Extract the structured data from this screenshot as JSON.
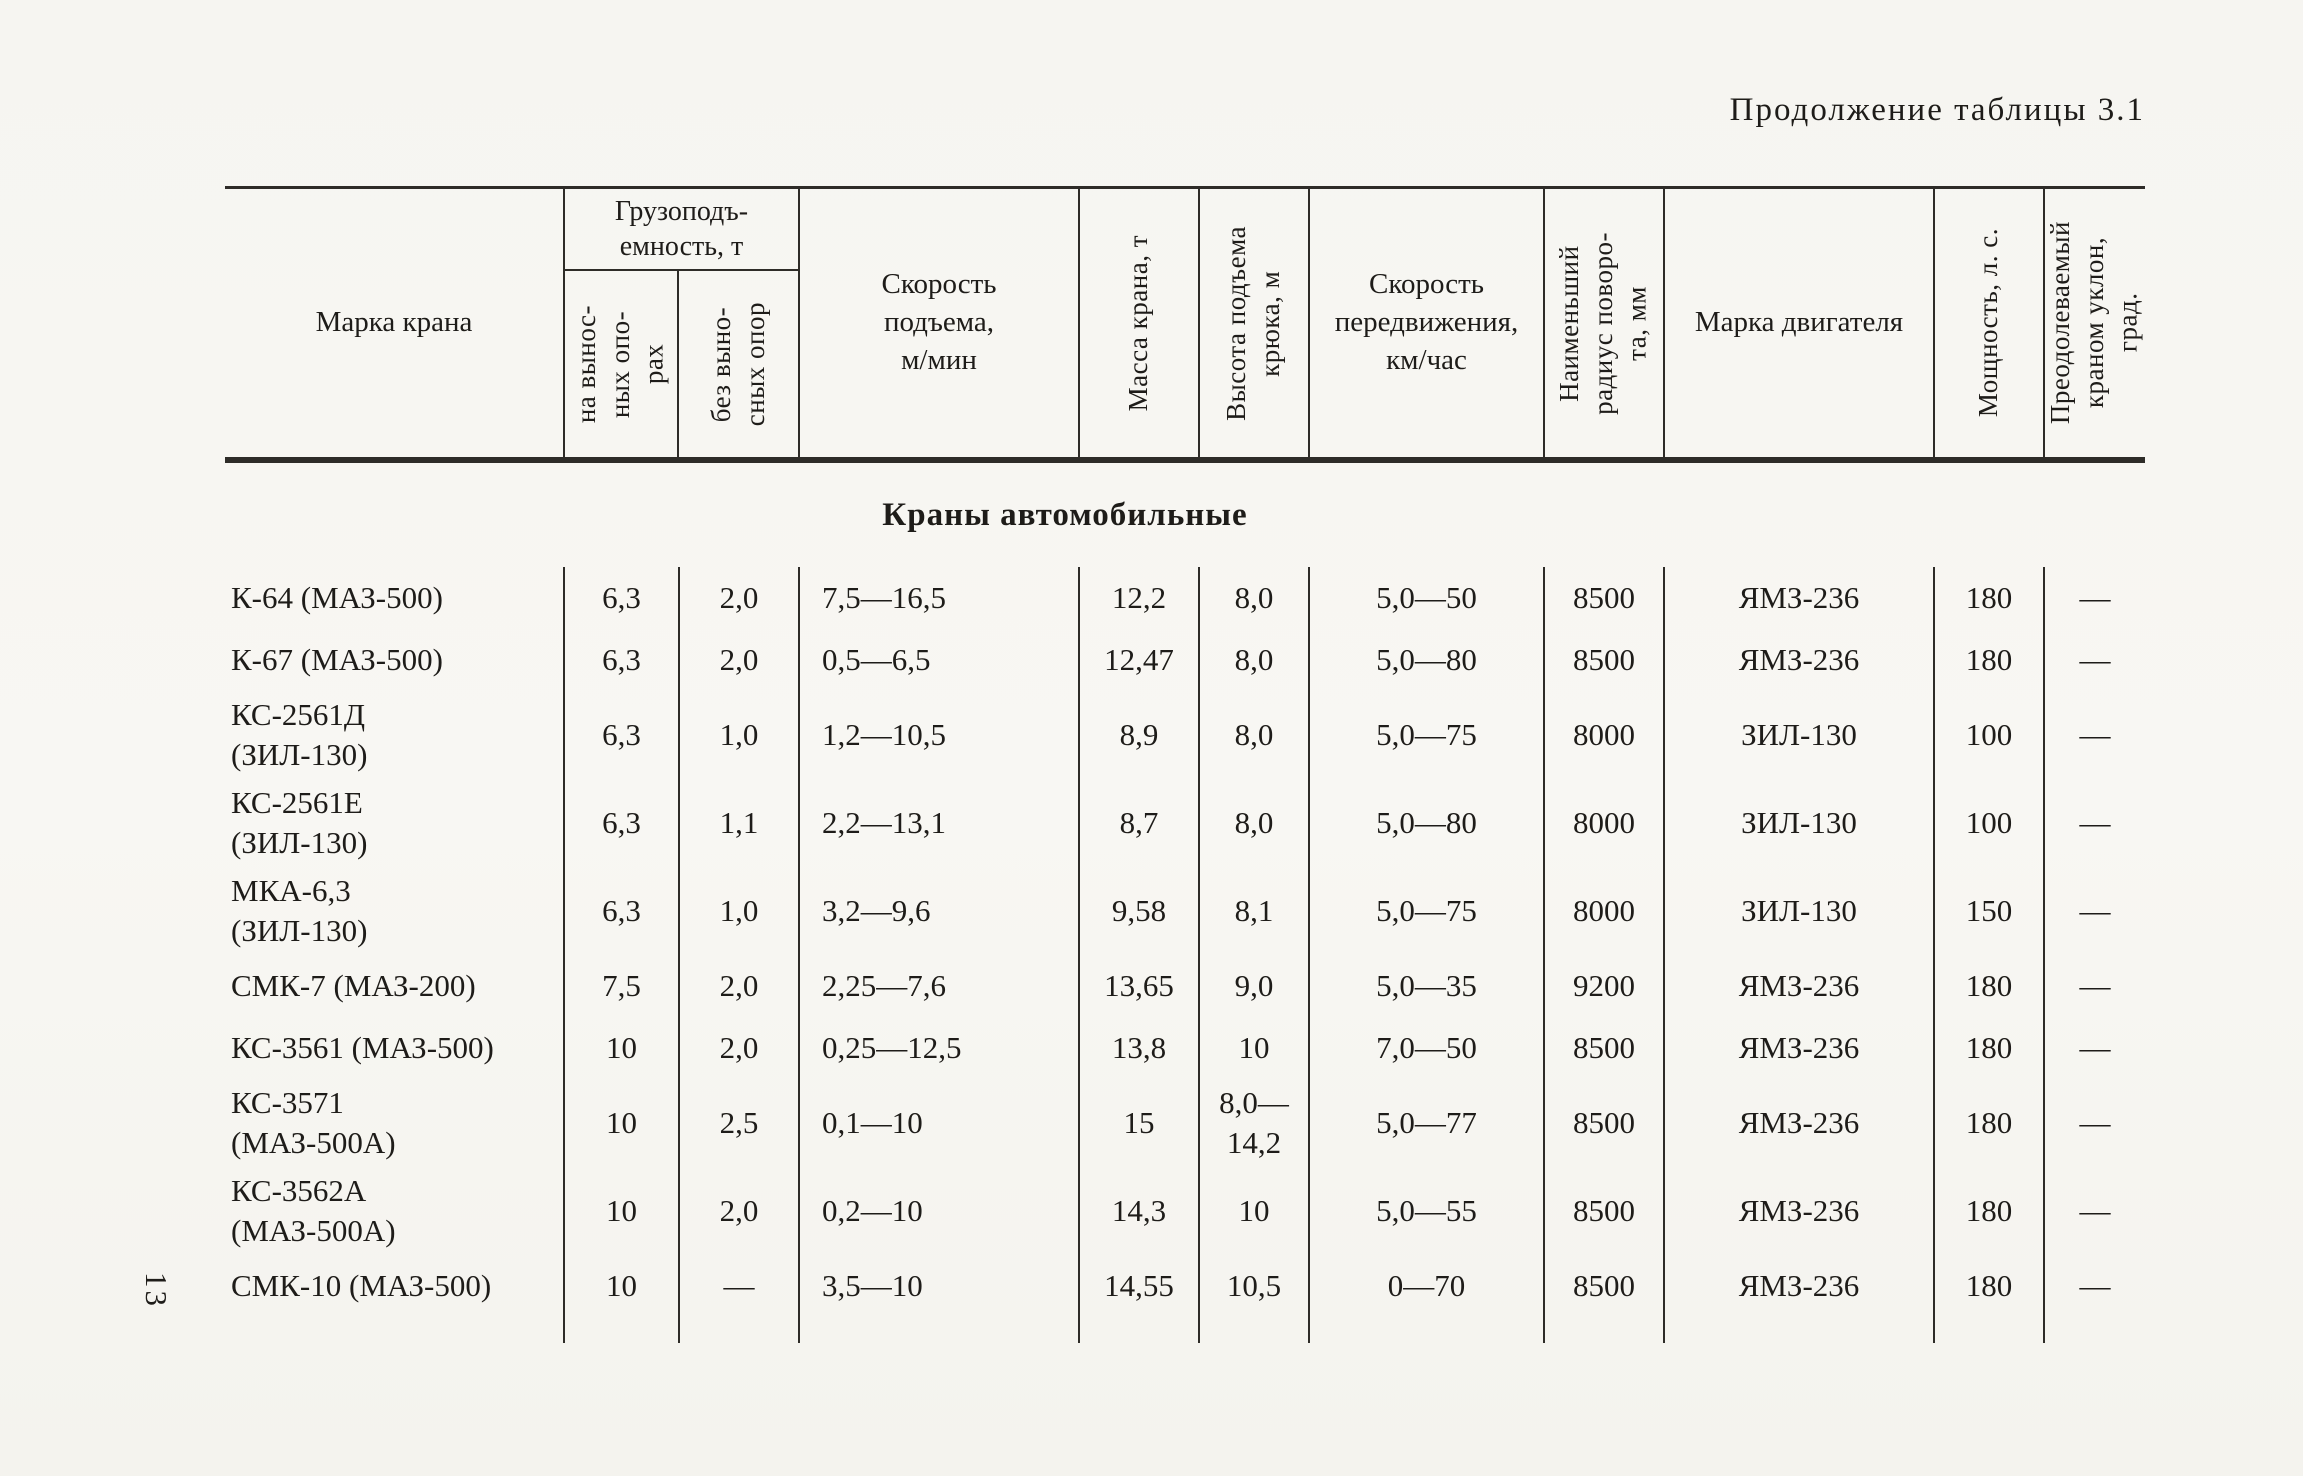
{
  "page": {
    "caption": "Продолжение таблицы 3.1",
    "section_title": "Краны автомобильные",
    "page_number": "13"
  },
  "table": {
    "header": {
      "brand": "Марка крана",
      "capacity_group": "Грузоподъ-\nемность, т",
      "capacity_on_outriggers": "на вынос-\nных опо-\nрах",
      "capacity_without_outriggers": "без выно-\nсных опор",
      "lift_speed": "Скорость\nподъема,\nм/мин",
      "crane_mass": "Масса крана, т",
      "hook_height": "Высота подъема\nкрюка, м",
      "travel_speed": "Скорость\nпередвижения,\nкм/час",
      "turn_radius": "Наименьший\nрадиус поворо-\nта, мм",
      "engine_brand": "Марка двигателя",
      "power": "Мощность, л. с.",
      "slope": "Преодолеваемый\nкраном уклон,\nград."
    },
    "rows": [
      {
        "name": "К-64 (МАЗ-500)",
        "cap_out": "6,3",
        "cap_no": "2,0",
        "lift": "7,5—16,5",
        "mass": "12,2",
        "height": "8,0",
        "travel": "5,0—50",
        "radius": "8500",
        "engine": "ЯМЗ-236",
        "power": "180",
        "slope": "—"
      },
      {
        "name": "К-67 (МАЗ-500)",
        "cap_out": "6,3",
        "cap_no": "2,0",
        "lift": "0,5—6,5",
        "mass": "12,47",
        "height": "8,0",
        "travel": "5,0—80",
        "radius": "8500",
        "engine": "ЯМЗ-236",
        "power": "180",
        "slope": "—"
      },
      {
        "name": "КС-2561Д\n(ЗИЛ-130)",
        "cap_out": "6,3",
        "cap_no": "1,0",
        "lift": "1,2—10,5",
        "mass": "8,9",
        "height": "8,0",
        "travel": "5,0—75",
        "radius": "8000",
        "engine": "ЗИЛ-130",
        "power": "100",
        "slope": "—"
      },
      {
        "name": "КС-2561Е\n(ЗИЛ-130)",
        "cap_out": "6,3",
        "cap_no": "1,1",
        "lift": "2,2—13,1",
        "mass": "8,7",
        "height": "8,0",
        "travel": "5,0—80",
        "radius": "8000",
        "engine": "ЗИЛ-130",
        "power": "100",
        "slope": "—"
      },
      {
        "name": "МКА-6,3\n(ЗИЛ-130)",
        "cap_out": "6,3",
        "cap_no": "1,0",
        "lift": "3,2—9,6",
        "mass": "9,58",
        "height": "8,1",
        "travel": "5,0—75",
        "radius": "8000",
        "engine": "ЗИЛ-130",
        "power": "150",
        "slope": "—"
      },
      {
        "name": "СМК-7 (МАЗ-200)",
        "cap_out": "7,5",
        "cap_no": "2,0",
        "lift": "2,25—7,6",
        "mass": "13,65",
        "height": "9,0",
        "travel": "5,0—35",
        "radius": "9200",
        "engine": "ЯМЗ-236",
        "power": "180",
        "slope": "—"
      },
      {
        "name": "КС-3561 (МАЗ-500)",
        "cap_out": "10",
        "cap_no": "2,0",
        "lift": "0,25—12,5",
        "mass": "13,8",
        "height": "10",
        "travel": "7,0—50",
        "radius": "8500",
        "engine": "ЯМЗ-236",
        "power": "180",
        "slope": "—"
      },
      {
        "name": "КС-3571\n(МАЗ-500А)",
        "cap_out": "10",
        "cap_no": "2,5",
        "lift": "0,1—10",
        "mass": "15",
        "height": "8,0—\n14,2",
        "travel": "5,0—77",
        "radius": "8500",
        "engine": "ЯМЗ-236",
        "power": "180",
        "slope": "—"
      },
      {
        "name": "КС-3562А\n(МАЗ-500А)",
        "cap_out": "10",
        "cap_no": "2,0",
        "lift": "0,2—10",
        "mass": "14,3",
        "height": "10",
        "travel": "5,0—55",
        "radius": "8500",
        "engine": "ЯМЗ-236",
        "power": "180",
        "slope": "—"
      },
      {
        "name": "СМК-10 (МАЗ-500)",
        "cap_out": "10",
        "cap_no": "—",
        "lift": "3,5—10",
        "mass": "14,55",
        "height": "10,5",
        "travel": "0—70",
        "radius": "8500",
        "engine": "ЯМЗ-236",
        "power": "180",
        "slope": "—"
      }
    ]
  }
}
